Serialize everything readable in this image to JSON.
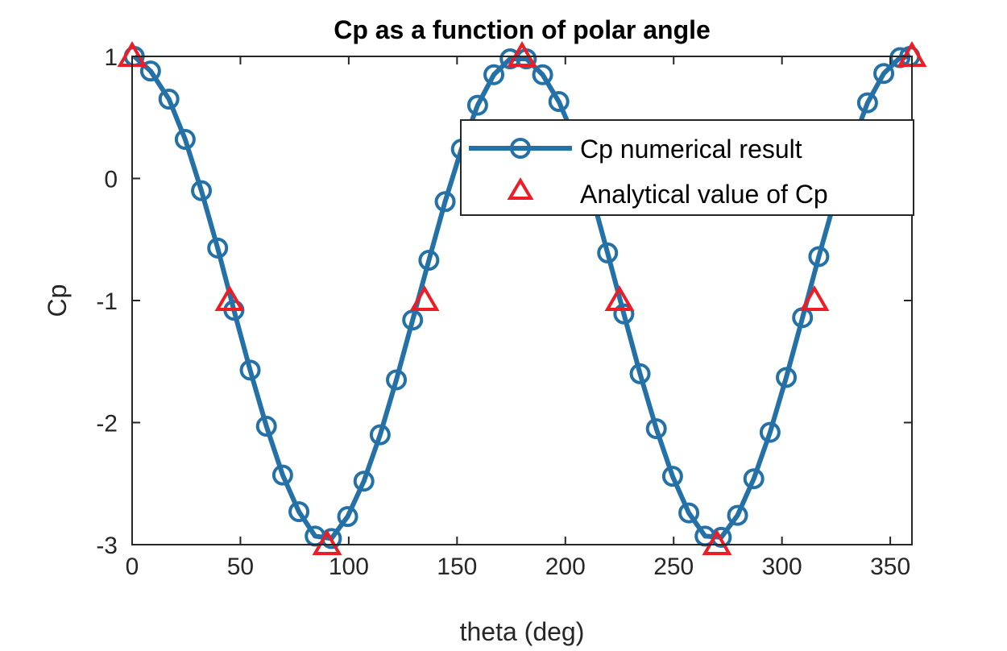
{
  "chart_data": {
    "type": "line",
    "title": "Cp as a function of polar angle",
    "xlabel": "theta (deg)",
    "ylabel": "Cp",
    "xlim": [
      0,
      360
    ],
    "ylim": [
      -3,
      1
    ],
    "xticks": [
      0,
      50,
      100,
      150,
      200,
      250,
      300,
      350
    ],
    "yticks": [
      1,
      0,
      -1,
      -2,
      -3
    ],
    "grid": false,
    "legend_position": "top-right",
    "series": [
      {
        "name": "Cp numerical result",
        "style": "line-circle",
        "color": "#2471A8",
        "x": [
          1,
          8.5,
          17,
          24.5,
          32,
          39.5,
          47,
          54.5,
          62,
          69.5,
          77,
          84.5,
          92,
          99.5,
          107,
          114.5,
          122,
          129.5,
          137,
          144.5,
          152,
          159.5,
          167,
          174.5,
          182,
          189.5,
          197,
          204.5,
          212,
          219.5,
          227,
          234.5,
          242,
          249.5,
          257,
          264.5,
          272,
          279.5,
          287,
          294.5,
          302,
          309.5,
          317,
          324.5,
          332,
          339.5,
          347,
          354.5,
          359
        ],
        "y": [
          1.0,
          0.88,
          0.65,
          0.32,
          -0.1,
          -0.57,
          -1.08,
          -1.57,
          -2.03,
          -2.43,
          -2.73,
          -2.93,
          -2.95,
          -2.77,
          -2.48,
          -2.1,
          -1.65,
          -1.16,
          -0.67,
          -0.19,
          0.24,
          0.6,
          0.85,
          0.98,
          0.98,
          0.85,
          0.63,
          0.32,
          -0.12,
          -0.61,
          -1.11,
          -1.6,
          -2.05,
          -2.44,
          -2.74,
          -2.93,
          -2.94,
          -2.76,
          -2.46,
          -2.08,
          -1.63,
          -1.14,
          -0.64,
          -0.17,
          0.26,
          0.62,
          0.86,
          0.99,
          1.0
        ]
      },
      {
        "name": "Analytical value of Cp",
        "style": "triangle",
        "color": "#EE1C25",
        "x": [
          0,
          45,
          90,
          135,
          180,
          225,
          270,
          315,
          360
        ],
        "y": [
          1,
          -1,
          -3,
          -1,
          1,
          -1,
          -3,
          -1,
          1
        ]
      }
    ]
  }
}
